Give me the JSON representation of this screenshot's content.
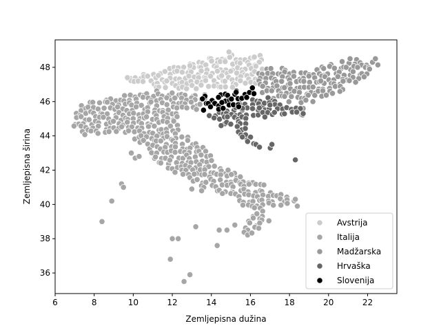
{
  "chart_data": {
    "type": "scatter",
    "title": "",
    "xlabel": "Zemljepisna dužina",
    "ylabel": "Zemljepisna širina",
    "xlim": [
      6.0,
      23.5
    ],
    "ylim": [
      34.8,
      49.6
    ],
    "xticks": [
      6,
      8,
      10,
      12,
      14,
      16,
      18,
      20,
      22
    ],
    "yticks": [
      36,
      38,
      40,
      42,
      44,
      46,
      48
    ],
    "grid": false,
    "legend_position": "lower-right",
    "series": [
      {
        "name": "Avstrija",
        "color": "#cccccc",
        "regions": [
          [
            [
              9.6,
              47.4
            ],
            [
              11.0,
              47.7
            ],
            [
              13.0,
              48.3
            ],
            [
              15.0,
              48.8
            ],
            [
              16.9,
              48.7
            ],
            [
              16.3,
              47.0
            ],
            [
              13.4,
              46.6
            ],
            [
              10.5,
              46.9
            ],
            [
              9.6,
              47.3
            ]
          ]
        ],
        "points": [
          [
            14.9,
            48.9
          ],
          [
            16.2,
            48.6
          ],
          [
            9.7,
            47.4
          ],
          [
            12.9,
            48.1
          ]
        ]
      },
      {
        "name": "Italija",
        "color": "#a6a6a6",
        "regions": [
          [
            [
              6.8,
              45.0
            ],
            [
              7.4,
              45.9
            ],
            [
              9.3,
              46.3
            ],
            [
              10.5,
              46.6
            ],
            [
              12.2,
              46.7
            ],
            [
              13.7,
              46.4
            ],
            [
              13.6,
              45.6
            ],
            [
              12.4,
              45.3
            ],
            [
              12.3,
              44.3
            ],
            [
              13.5,
              43.5
            ],
            [
              14.4,
              42.2
            ],
            [
              16.1,
              41.5
            ],
            [
              18.5,
              40.1
            ],
            [
              17.7,
              40.0
            ],
            [
              16.5,
              39.5
            ],
            [
              17.1,
              39.0
            ],
            [
              16.6,
              38.8
            ],
            [
              16.0,
              38.0
            ],
            [
              15.6,
              38.4
            ],
            [
              16.1,
              39.5
            ],
            [
              15.2,
              40.2
            ],
            [
              14.0,
              40.8
            ],
            [
              12.5,
              41.5
            ],
            [
              11.2,
              42.4
            ],
            [
              10.5,
              43.5
            ],
            [
              9.5,
              44.2
            ],
            [
              8.5,
              44.2
            ],
            [
              7.6,
              43.8
            ],
            [
              7.1,
              44.2
            ],
            [
              6.8,
              45.0
            ]
          ]
        ],
        "points": [
          [
            8.4,
            39.0
          ],
          [
            8.9,
            40.2
          ],
          [
            9.4,
            41.2
          ],
          [
            9.5,
            41.0
          ],
          [
            12.0,
            38.0
          ],
          [
            12.3,
            38.0
          ],
          [
            11.9,
            36.8
          ],
          [
            12.6,
            35.5
          ],
          [
            12.9,
            35.9
          ],
          [
            13.2,
            38.7
          ],
          [
            14.3,
            37.6
          ],
          [
            14.4,
            38.5
          ],
          [
            14.8,
            38.5
          ],
          [
            15.2,
            38.8
          ],
          [
            9.9,
            43.0
          ],
          [
            10.1,
            42.7
          ],
          [
            10.3,
            42.8
          ],
          [
            13.5,
            40.8
          ],
          [
            13.0,
            40.9
          ],
          [
            18.4,
            39.9
          ],
          [
            18.3,
            40.3
          ]
        ]
      },
      {
        "name": "Madžarska",
        "color": "#999999",
        "regions": [
          [
            [
              16.1,
              47.7
            ],
            [
              17.2,
              48.0
            ],
            [
              18.8,
              47.8
            ],
            [
              20.0,
              48.2
            ],
            [
              21.5,
              48.5
            ],
            [
              22.6,
              48.2
            ],
            [
              21.8,
              47.4
            ],
            [
              20.5,
              46.5
            ],
            [
              18.8,
              45.9
            ],
            [
              17.5,
              46.0
            ],
            [
              16.5,
              46.5
            ],
            [
              16.1,
              47.7
            ]
          ]
        ],
        "points": [
          [
            22.4,
            48.5
          ],
          [
            21.1,
            48.5
          ],
          [
            19.2,
            46.0
          ],
          [
            18.7,
            45.6
          ],
          [
            16.3,
            46.0
          ],
          [
            19.6,
            47.2
          ],
          [
            20.9,
            48.0
          ],
          [
            22.1,
            47.9
          ]
        ]
      },
      {
        "name": "Hrvaška",
        "color": "#666666",
        "regions": [
          [
            [
              13.6,
              45.5
            ],
            [
              14.4,
              45.5
            ],
            [
              15.2,
              45.9
            ],
            [
              16.6,
              46.4
            ],
            [
              17.6,
              45.9
            ],
            [
              19.0,
              45.5
            ],
            [
              18.6,
              45.1
            ],
            [
              17.2,
              45.1
            ],
            [
              16.1,
              45.0
            ],
            [
              15.9,
              44.1
            ],
            [
              16.6,
              43.5
            ],
            [
              17.6,
              43.0
            ],
            [
              18.5,
              42.5
            ],
            [
              17.4,
              43.1
            ],
            [
              16.0,
              43.4
            ],
            [
              15.1,
              44.4
            ],
            [
              14.4,
              44.9
            ],
            [
              13.9,
              44.9
            ],
            [
              13.6,
              45.5
            ]
          ]
        ],
        "points": [
          [
            18.3,
            42.6
          ],
          [
            17.1,
            43.5
          ],
          [
            14.5,
            44.6
          ],
          [
            15.6,
            45.6
          ],
          [
            17.0,
            45.8
          ],
          [
            18.7,
            45.3
          ]
        ]
      },
      {
        "name": "Slovenija",
        "color": "#000000",
        "regions": [
          [
            [
              13.4,
              46.2
            ],
            [
              13.8,
              46.4
            ],
            [
              15.0,
              46.6
            ],
            [
              16.3,
              46.7
            ],
            [
              16.1,
              46.2
            ],
            [
              15.6,
              45.8
            ],
            [
              14.6,
              45.5
            ],
            [
              13.7,
              45.6
            ],
            [
              13.4,
              46.2
            ]
          ]
        ],
        "points": [
          [
            13.6,
            45.5
          ],
          [
            16.1,
            46.8
          ],
          [
            15.4,
            45.7
          ]
        ]
      }
    ]
  }
}
